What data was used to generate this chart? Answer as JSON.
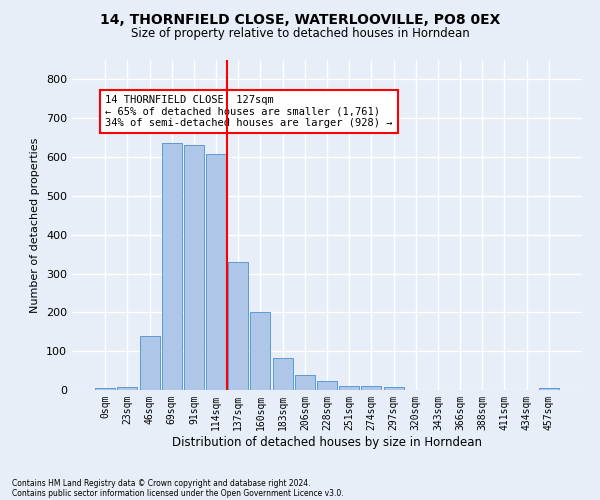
{
  "title": "14, THORNFIELD CLOSE, WATERLOOVILLE, PO8 0EX",
  "subtitle": "Size of property relative to detached houses in Horndean",
  "xlabel": "Distribution of detached houses by size in Horndean",
  "ylabel": "Number of detached properties",
  "footnote1": "Contains HM Land Registry data © Crown copyright and database right 2024.",
  "footnote2": "Contains public sector information licensed under the Open Government Licence v3.0.",
  "bin_labels": [
    "0sqm",
    "23sqm",
    "46sqm",
    "69sqm",
    "91sqm",
    "114sqm",
    "137sqm",
    "160sqm",
    "183sqm",
    "206sqm",
    "228sqm",
    "251sqm",
    "274sqm",
    "297sqm",
    "320sqm",
    "343sqm",
    "366sqm",
    "388sqm",
    "411sqm",
    "434sqm",
    "457sqm"
  ],
  "bar_values": [
    5,
    8,
    140,
    635,
    630,
    608,
    330,
    200,
    83,
    38,
    23,
    10,
    10,
    8,
    0,
    0,
    0,
    0,
    0,
    0,
    5
  ],
  "bar_color": "#aec6e8",
  "bar_edge_color": "#5b9bd5",
  "bg_color": "#e8eef7",
  "grid_color": "#ffffff",
  "vline_x": 5.5,
  "vline_color": "red",
  "annotation_title": "14 THORNFIELD CLOSE: 127sqm",
  "annotation_line1": "← 65% of detached houses are smaller (1,761)",
  "annotation_line2": "34% of semi-detached houses are larger (928) →",
  "annotation_box_color": "#ffffff",
  "annotation_border_color": "red",
  "ylim": [
    0,
    850
  ],
  "yticks": [
    0,
    100,
    200,
    300,
    400,
    500,
    600,
    700,
    800
  ],
  "title_fontsize": 10,
  "subtitle_fontsize": 8.5,
  "ylabel_fontsize": 8,
  "xlabel_fontsize": 8.5
}
